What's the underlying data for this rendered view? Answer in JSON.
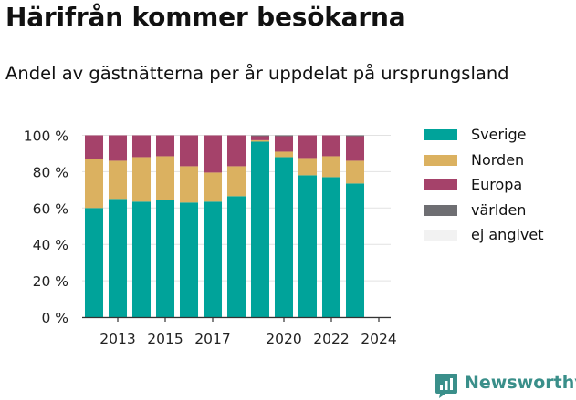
{
  "chart_data": {
    "type": "bar",
    "stacked": true,
    "title": "Härifrån kommer besökarna",
    "subtitle": "Andel av gästnätterna per år uppdelat på ursprungsland",
    "x": [
      2012,
      2013,
      2014,
      2015,
      2016,
      2017,
      2018,
      2019,
      2020,
      2021,
      2022,
      2023,
      2024
    ],
    "x_tick_labels": [
      "2013",
      "2015",
      "2017",
      "2020",
      "2022",
      "2024"
    ],
    "x_ticks": [
      2013,
      2015,
      2017,
      2020,
      2022,
      2024
    ],
    "y_tick_labels": [
      "0 %",
      "20 %",
      "40 %",
      "60 %",
      "80 %",
      "100 %"
    ],
    "y_ticks": [
      0,
      20,
      40,
      60,
      80,
      100
    ],
    "ylim": [
      0,
      100
    ],
    "series": [
      {
        "name": "Sverige",
        "color": "#00a39a",
        "values": [
          60,
          65,
          63.5,
          64.5,
          63,
          63.5,
          66.5,
          96.5,
          88,
          78,
          77,
          73.5,
          null
        ]
      },
      {
        "name": "Norden",
        "color": "#dbb160",
        "values": [
          27,
          21,
          24.5,
          24,
          20,
          16,
          16.5,
          0.8,
          3,
          9.5,
          11.5,
          12.5,
          null
        ]
      },
      {
        "name": "Europa",
        "color": "#a5426a",
        "values": [
          13,
          14,
          12,
          11.5,
          17,
          20.5,
          17,
          2.2,
          8.5,
          12.5,
          11.5,
          13.5,
          null
        ]
      },
      {
        "name": "världen",
        "color": "#6e6e72",
        "values": [
          0,
          0,
          0,
          0,
          0,
          0,
          0,
          0.5,
          0.5,
          0,
          0,
          0.5,
          null
        ]
      },
      {
        "name": "ej angivet",
        "color": "#f2f2f2",
        "values": [
          0,
          0,
          0,
          0,
          0,
          0,
          0,
          0,
          0,
          0,
          0,
          0,
          null
        ]
      }
    ],
    "legend_position": "right",
    "grid": "horizontal"
  },
  "branding": {
    "name": "Newsworthy",
    "color": "#3a8f8a"
  }
}
